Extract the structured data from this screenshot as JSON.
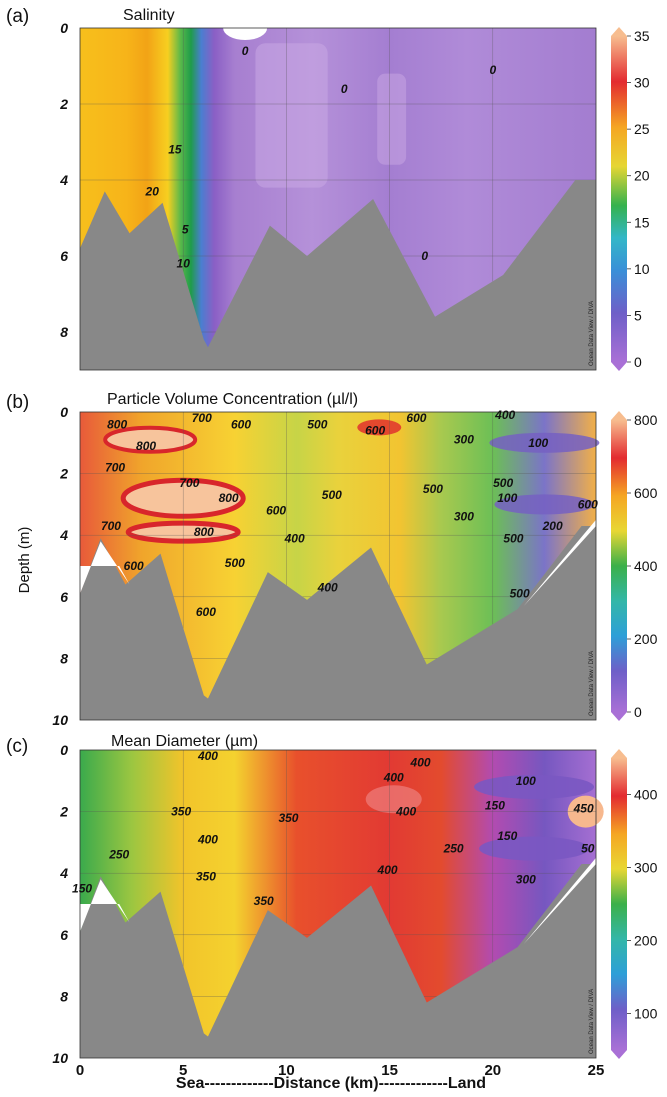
{
  "ylabel": "Depth (m)",
  "xlabel": "Sea-------------Distance (km)-------------Land",
  "watermark": "Ocean Data View / DIVA",
  "chart_data": [
    {
      "id": "a",
      "panel_label": "(a)",
      "title": "Salinity",
      "type": "heatmap",
      "xlim": [
        0,
        25
      ],
      "ylim": [
        0,
        9
      ],
      "yticks": [
        "0",
        "2",
        "4",
        "6",
        "8"
      ],
      "colorbar": {
        "min": 0,
        "max": 35,
        "ticks": [
          "0",
          "5",
          "10",
          "15",
          "20",
          "25",
          "30",
          "35"
        ]
      },
      "contour_labels": [
        {
          "text": "0",
          "x": 8.0,
          "y": 0.6
        },
        {
          "text": "0",
          "x": 12.8,
          "y": 1.6
        },
        {
          "text": "0",
          "x": 20.0,
          "y": 1.1
        },
        {
          "text": "15",
          "x": 4.6,
          "y": 3.2
        },
        {
          "text": "20",
          "x": 3.5,
          "y": 4.3
        },
        {
          "text": "5",
          "x": 5.1,
          "y": 5.3
        },
        {
          "text": "10",
          "x": 5.0,
          "y": 6.2
        },
        {
          "text": "0",
          "x": 16.7,
          "y": 6.0
        }
      ]
    },
    {
      "id": "b",
      "panel_label": "(b)",
      "title": "Particle Volume Concentration (µl/l)",
      "type": "heatmap",
      "xlim": [
        0,
        25
      ],
      "ylim": [
        0,
        10
      ],
      "yticks": [
        "0",
        "2",
        "4",
        "6",
        "8",
        "10"
      ],
      "colorbar": {
        "min": 0,
        "max": 800,
        "ticks": [
          "0",
          "200",
          "400",
          "600",
          "800"
        ]
      },
      "contour_labels": [
        {
          "text": "800",
          "x": 1.8,
          "y": 0.4
        },
        {
          "text": "700",
          "x": 5.9,
          "y": 0.2
        },
        {
          "text": "600",
          "x": 7.8,
          "y": 0.4
        },
        {
          "text": "800",
          "x": 3.2,
          "y": 1.1
        },
        {
          "text": "700",
          "x": 1.7,
          "y": 1.8
        },
        {
          "text": "500",
          "x": 11.5,
          "y": 0.4
        },
        {
          "text": "600",
          "x": 14.3,
          "y": 0.6
        },
        {
          "text": "600",
          "x": 16.3,
          "y": 0.2
        },
        {
          "text": "400",
          "x": 20.6,
          "y": 0.1
        },
        {
          "text": "300",
          "x": 18.6,
          "y": 0.9
        },
        {
          "text": "100",
          "x": 22.2,
          "y": 1.0
        },
        {
          "text": "700",
          "x": 5.3,
          "y": 2.3
        },
        {
          "text": "800",
          "x": 7.2,
          "y": 2.8
        },
        {
          "text": "600",
          "x": 9.5,
          "y": 3.2
        },
        {
          "text": "500",
          "x": 12.2,
          "y": 2.7
        },
        {
          "text": "500",
          "x": 17.1,
          "y": 2.5
        },
        {
          "text": "500",
          "x": 20.5,
          "y": 2.3
        },
        {
          "text": "100",
          "x": 20.7,
          "y": 2.8
        },
        {
          "text": "600",
          "x": 24.6,
          "y": 3.0
        },
        {
          "text": "300",
          "x": 18.6,
          "y": 3.4
        },
        {
          "text": "200",
          "x": 22.9,
          "y": 3.7
        },
        {
          "text": "700",
          "x": 1.5,
          "y": 3.7
        },
        {
          "text": "800",
          "x": 6.0,
          "y": 3.9
        },
        {
          "text": "400",
          "x": 10.4,
          "y": 4.1
        },
        {
          "text": "500",
          "x": 21.0,
          "y": 4.1
        },
        {
          "text": "600",
          "x": 2.6,
          "y": 5.0
        },
        {
          "text": "500",
          "x": 7.5,
          "y": 4.9
        },
        {
          "text": "400",
          "x": 12.0,
          "y": 5.7
        },
        {
          "text": "500",
          "x": 21.3,
          "y": 5.9
        },
        {
          "text": "600",
          "x": 6.1,
          "y": 6.5
        }
      ]
    },
    {
      "id": "c",
      "panel_label": "(c)",
      "title": "Mean Diameter (µm)",
      "type": "heatmap",
      "xlim": [
        0,
        25
      ],
      "ylim": [
        0,
        10
      ],
      "yticks": [
        "0",
        "2",
        "4",
        "6",
        "8",
        "10"
      ],
      "xticks": [
        "0",
        "5",
        "10",
        "15",
        "20",
        "25"
      ],
      "colorbar": {
        "min": 50,
        "max": 450,
        "ticks": [
          "100",
          "200",
          "300",
          "400"
        ]
      },
      "contour_labels": [
        {
          "text": "400",
          "x": 6.2,
          "y": 0.2
        },
        {
          "text": "400",
          "x": 15.2,
          "y": 0.9
        },
        {
          "text": "400",
          "x": 16.5,
          "y": 0.4
        },
        {
          "text": "100",
          "x": 21.6,
          "y": 1.0
        },
        {
          "text": "150",
          "x": 20.1,
          "y": 1.8
        },
        {
          "text": "350",
          "x": 4.9,
          "y": 2.0
        },
        {
          "text": "350",
          "x": 10.1,
          "y": 2.2
        },
        {
          "text": "400",
          "x": 15.8,
          "y": 2.0
        },
        {
          "text": "450",
          "x": 24.4,
          "y": 1.9
        },
        {
          "text": "400",
          "x": 6.2,
          "y": 2.9
        },
        {
          "text": "150",
          "x": 20.7,
          "y": 2.8
        },
        {
          "text": "250",
          "x": 1.9,
          "y": 3.4
        },
        {
          "text": "250",
          "x": 18.1,
          "y": 3.2
        },
        {
          "text": "50",
          "x": 24.6,
          "y": 3.2
        },
        {
          "text": "350",
          "x": 6.1,
          "y": 4.1
        },
        {
          "text": "400",
          "x": 14.9,
          "y": 3.9
        },
        {
          "text": "300",
          "x": 21.6,
          "y": 4.2
        },
        {
          "text": "150",
          "x": 0.1,
          "y": 4.5
        },
        {
          "text": "350",
          "x": 8.9,
          "y": 4.9
        }
      ]
    }
  ]
}
